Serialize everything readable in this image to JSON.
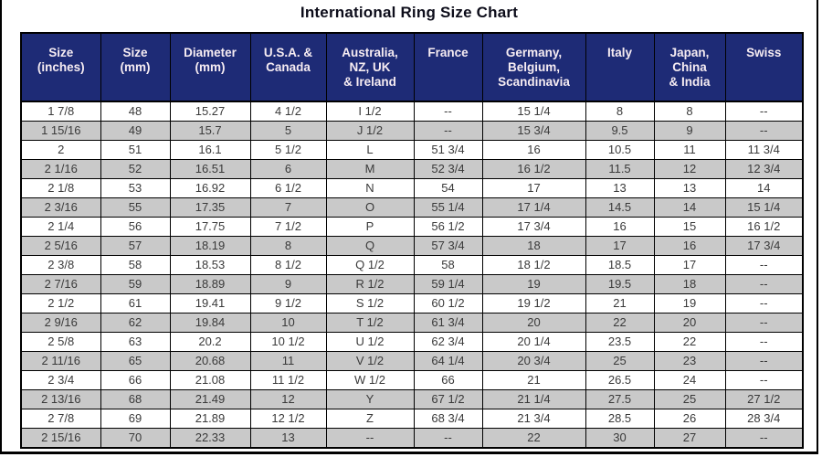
{
  "title": "International Ring Size Chart",
  "colors": {
    "header_background": "#1e2b76",
    "header_text": "#f6ecf2",
    "row_white": "#ffffff",
    "row_gray": "#c9c9c9",
    "grid_border": "#000000",
    "cell_text": "#3a3a3a",
    "title_text": "#0d0d1a"
  },
  "chart_data": {
    "type": "table",
    "title": "International Ring Size Chart",
    "columns": [
      "Size\n(inches)",
      "Size\n(mm)",
      "Diameter\n(mm)",
      "U.S.A. &\nCanada",
      "Australia,\nNZ, UK\n& Ireland",
      "France",
      "Germany,\nBelgium,\nScandinavia",
      "Italy",
      "Japan,\nChina\n& India",
      "Swiss"
    ],
    "rows": [
      [
        "1 7/8",
        "48",
        "15.27",
        "4 1/2",
        "I 1/2",
        "--",
        "15 1/4",
        "8",
        "8",
        "--"
      ],
      [
        "1 15/16",
        "49",
        "15.7",
        "5",
        "J 1/2",
        "--",
        "15 3/4",
        "9.5",
        "9",
        "--"
      ],
      [
        "2",
        "51",
        "16.1",
        "5 1/2",
        "L",
        "51 3/4",
        "16",
        "10.5",
        "11",
        "11 3/4"
      ],
      [
        "2 1/16",
        "52",
        "16.51",
        "6",
        "M",
        "52 3/4",
        "16 1/2",
        "11.5",
        "12",
        "12 3/4"
      ],
      [
        "2 1/8",
        "53",
        "16.92",
        "6 1/2",
        "N",
        "54",
        "17",
        "13",
        "13",
        "14"
      ],
      [
        "2 3/16",
        "55",
        "17.35",
        "7",
        "O",
        "55 1/4",
        "17 1/4",
        "14.5",
        "14",
        "15 1/4"
      ],
      [
        "2 1/4",
        "56",
        "17.75",
        "7 1/2",
        "P",
        "56 1/2",
        "17 3/4",
        "16",
        "15",
        "16 1/2"
      ],
      [
        "2 5/16",
        "57",
        "18.19",
        "8",
        "Q",
        "57 3/4",
        "18",
        "17",
        "16",
        "17 3/4"
      ],
      [
        "2 3/8",
        "58",
        "18.53",
        "8 1/2",
        "Q 1/2",
        "58",
        "18 1/2",
        "18.5",
        "17",
        "--"
      ],
      [
        "2 7/16",
        "59",
        "18.89",
        "9",
        "R 1/2",
        "59 1/4",
        "19",
        "19.5",
        "18",
        "--"
      ],
      [
        "2 1/2",
        "61",
        "19.41",
        "9 1/2",
        "S 1/2",
        "60 1/2",
        "19 1/2",
        "21",
        "19",
        "--"
      ],
      [
        "2 9/16",
        "62",
        "19.84",
        "10",
        "T 1/2",
        "61 3/4",
        "20",
        "22",
        "20",
        "--"
      ],
      [
        "2 5/8",
        "63",
        "20.2",
        "10 1/2",
        "U 1/2",
        "62 3/4",
        "20 1/4",
        "23.5",
        "22",
        "--"
      ],
      [
        "2 11/16",
        "65",
        "20.68",
        "11",
        "V 1/2",
        "64 1/4",
        "20 3/4",
        "25",
        "23",
        "--"
      ],
      [
        "2 3/4",
        "66",
        "21.08",
        "11 1/2",
        "W 1/2",
        "66",
        "21",
        "26.5",
        "24",
        "--"
      ],
      [
        "2 13/16",
        "68",
        "21.49",
        "12",
        "Y",
        "67 1/2",
        "21 1/4",
        "27.5",
        "25",
        "27 1/2"
      ],
      [
        "2 7/8",
        "69",
        "21.89",
        "12 1/2",
        "Z",
        "68 3/4",
        "21 3/4",
        "28.5",
        "26",
        "28 3/4"
      ],
      [
        "2 15/16",
        "70",
        "22.33",
        "13",
        "--",
        "--",
        "22",
        "30",
        "27",
        "--"
      ]
    ]
  }
}
